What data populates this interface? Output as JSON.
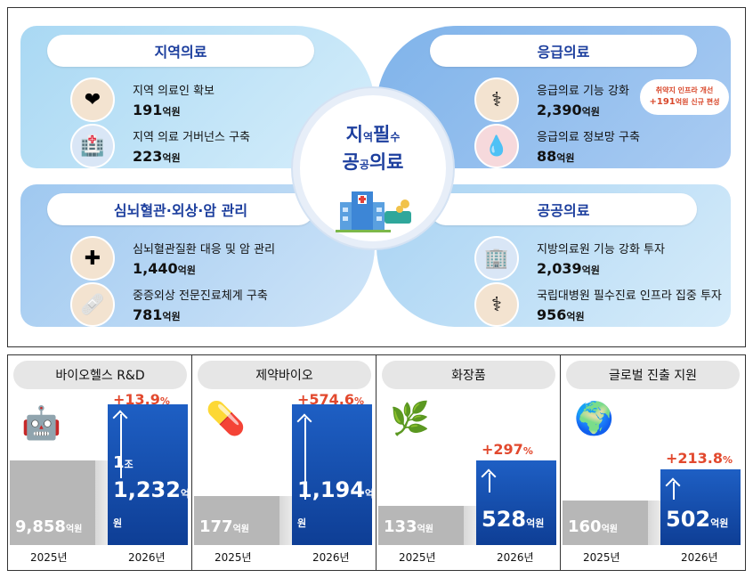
{
  "top": {
    "center": {
      "line1a": "지",
      "line1b": "역",
      "line1c": "필",
      "line1d": "수",
      "line2a": "공",
      "line2b": "공",
      "line2c": "의료"
    },
    "regional": {
      "title": "지역의료",
      "items": [
        {
          "label": "지역 의료인 확보",
          "value": "191",
          "unit": "억원"
        },
        {
          "label": "지역 의료 거버넌스 구축",
          "value": "223",
          "unit": "억원"
        }
      ]
    },
    "emergency": {
      "title": "응급의료",
      "items": [
        {
          "label": "응급의료 기능 강화",
          "value": "2,390",
          "unit": "억원"
        },
        {
          "label": "응급의료 정보망 구축",
          "value": "88",
          "unit": "억원"
        }
      ],
      "bubble_line1": "취약지 인프라 개선",
      "bubble_value": "+191",
      "bubble_line2": "억원 신규 편성"
    },
    "cardio": {
      "title": "심뇌혈관·외상·암 관리",
      "items": [
        {
          "label": "심뇌혈관질환 대응 및 암 관리",
          "value": "1,440",
          "unit": "억원"
        },
        {
          "label": "중증외상 전문진료체계 구축",
          "value": "781",
          "unit": "억원"
        }
      ]
    },
    "public": {
      "title": "공공의료",
      "items": [
        {
          "label": "지방의료원 기능 강화 투자",
          "value": "2,039",
          "unit": "억원"
        },
        {
          "label": "국립대병원 필수진료 인프라 집중 투자",
          "value": "956",
          "unit": "억원"
        }
      ]
    }
  },
  "bottom": {
    "panels": [
      {
        "title": "바이오헬스 R&D",
        "pct": "+13.9",
        "pct_unit": "%",
        "v2025": "9,858",
        "v2026_jo": "1",
        "v2026_jo_unit": "조",
        "v2026": "1,232",
        "unit": "억원",
        "y1": "2025년",
        "y2": "2026년"
      },
      {
        "title": "제약바이오",
        "pct": "+574.6",
        "pct_unit": "%",
        "v2025": "177",
        "v2026": "1,194",
        "unit": "억원",
        "y1": "2025년",
        "y2": "2026년"
      },
      {
        "title": "화장품",
        "pct": "+297",
        "pct_unit": "%",
        "v2025": "133",
        "v2026": "528",
        "unit": "억원",
        "y1": "2025년",
        "y2": "2026년"
      },
      {
        "title": "글로벌 진출 지원",
        "pct": "+213.8",
        "pct_unit": "%",
        "v2025": "160",
        "v2026": "502",
        "unit": "억원",
        "y1": "2025년",
        "y2": "2026년"
      }
    ]
  }
}
